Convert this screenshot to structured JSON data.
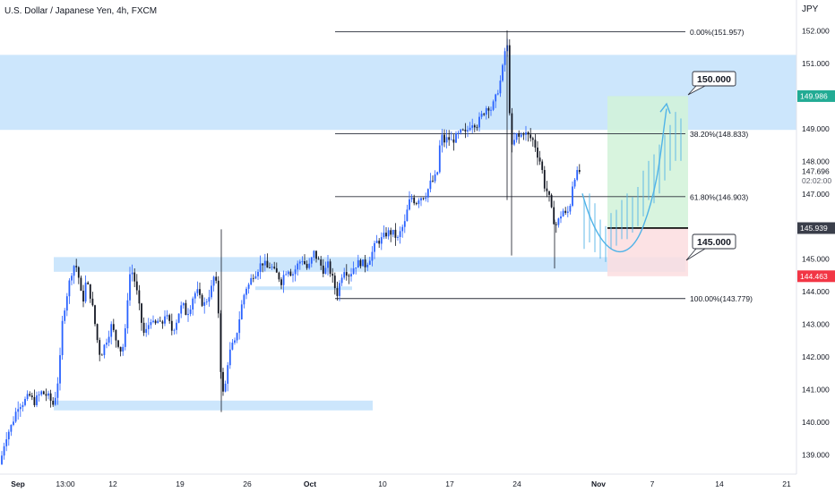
{
  "chart_data": {
    "type": "candlestick",
    "title": "U.S. Dollar / Japanese Yen, 4h, FXCM",
    "currency": "JPY",
    "ylim": [
      138.6,
      152.4
    ],
    "y_ticks": [
      "139.000",
      "140.000",
      "141.000",
      "142.000",
      "143.000",
      "144.000",
      "145.000",
      "146.000",
      "147.000",
      "148.000",
      "149.000",
      "150.000",
      "151.000",
      "152.000"
    ],
    "x_ticks": [
      "Sep",
      "13:00",
      "12",
      "19",
      "26",
      "Oct",
      "10",
      "17",
      "24",
      "Nov",
      "7",
      "14",
      "21"
    ],
    "price_path": [
      [
        0,
        138.7
      ],
      [
        6,
        139.5
      ],
      [
        13,
        139.9
      ],
      [
        20,
        140.5
      ],
      [
        26,
        140.6
      ],
      [
        33,
        140.8
      ],
      [
        38,
        140.6
      ],
      [
        46,
        140.9
      ],
      [
        53,
        140.8
      ],
      [
        60,
        140.5
      ],
      [
        66,
        141.5
      ],
      [
        70,
        143.2
      ],
      [
        76,
        144.1
      ],
      [
        80,
        144.6
      ],
      [
        84,
        144.9
      ],
      [
        88,
        144.4
      ],
      [
        92,
        143.6
      ],
      [
        96,
        144.3
      ],
      [
        100,
        144.0
      ],
      [
        104,
        143.4
      ],
      [
        108,
        142.6
      ],
      [
        112,
        142.0
      ],
      [
        116,
        142.3
      ],
      [
        120,
        142.6
      ],
      [
        125,
        143.0
      ],
      [
        128,
        142.6
      ],
      [
        132,
        142.4
      ],
      [
        136,
        142.1
      ],
      [
        140,
        142.8
      ],
      [
        144,
        144.5
      ],
      [
        148,
        144.6
      ],
      [
        152,
        144.1
      ],
      [
        156,
        143.4
      ],
      [
        160,
        142.7
      ],
      [
        164,
        142.8
      ],
      [
        168,
        143.2
      ],
      [
        172,
        142.9
      ],
      [
        176,
        143.1
      ],
      [
        180,
        142.9
      ],
      [
        184,
        143.3
      ],
      [
        188,
        143.1
      ],
      [
        192,
        142.8
      ],
      [
        196,
        143.0
      ],
      [
        200,
        143.4
      ],
      [
        204,
        143.6
      ],
      [
        208,
        143.3
      ],
      [
        212,
        143.5
      ],
      [
        216,
        143.9
      ],
      [
        220,
        144.0
      ],
      [
        224,
        143.7
      ],
      [
        228,
        143.6
      ],
      [
        232,
        143.8
      ],
      [
        236,
        144.1
      ],
      [
        240,
        144.6
      ],
      [
        244,
        143.3
      ],
      [
        247,
        141.2
      ],
      [
        250,
        140.7
      ],
      [
        254,
        141.8
      ],
      [
        258,
        142.3
      ],
      [
        262,
        142.4
      ],
      [
        266,
        143.0
      ],
      [
        270,
        143.6
      ],
      [
        274,
        144.1
      ],
      [
        278,
        144.2
      ],
      [
        282,
        144.5
      ],
      [
        286,
        144.6
      ],
      [
        290,
        144.8
      ],
      [
        294,
        144.9
      ],
      [
        298,
        144.7
      ],
      [
        302,
        144.8
      ],
      [
        306,
        144.6
      ],
      [
        310,
        144.5
      ],
      [
        314,
        144.3
      ],
      [
        318,
        144.6
      ],
      [
        322,
        144.7
      ],
      [
        326,
        144.5
      ],
      [
        330,
        144.7
      ],
      [
        334,
        144.9
      ],
      [
        338,
        145.0
      ],
      [
        342,
        144.7
      ],
      [
        346,
        144.8
      ],
      [
        350,
        145.2
      ],
      [
        354,
        145.0
      ],
      [
        358,
        144.8
      ],
      [
        362,
        144.6
      ],
      [
        366,
        144.8
      ],
      [
        370,
        144.5
      ],
      [
        374,
        144.1
      ],
      [
        377,
        143.9
      ],
      [
        380,
        144.4
      ],
      [
        384,
        144.7
      ],
      [
        390,
        144.5
      ],
      [
        396,
        144.8
      ],
      [
        402,
        144.9
      ],
      [
        408,
        144.8
      ],
      [
        414,
        145.1
      ],
      [
        420,
        145.5
      ],
      [
        426,
        145.6
      ],
      [
        432,
        145.8
      ],
      [
        438,
        145.8
      ],
      [
        444,
        145.6
      ],
      [
        448,
        145.9
      ],
      [
        452,
        146.1
      ],
      [
        456,
        146.7
      ],
      [
        460,
        146.9
      ],
      [
        464,
        146.7
      ],
      [
        468,
        146.9
      ],
      [
        472,
        146.9
      ],
      [
        476,
        147.0
      ],
      [
        480,
        147.3
      ],
      [
        484,
        147.4
      ],
      [
        488,
        147.6
      ],
      [
        492,
        148.8
      ],
      [
        496,
        148.6
      ],
      [
        500,
        148.7
      ],
      [
        504,
        148.6
      ],
      [
        508,
        148.7
      ],
      [
        512,
        148.8
      ],
      [
        516,
        148.9
      ],
      [
        520,
        148.8
      ],
      [
        524,
        149.1
      ],
      [
        528,
        149.2
      ],
      [
        532,
        149.1
      ],
      [
        536,
        149.3
      ],
      [
        540,
        149.5
      ],
      [
        544,
        149.7
      ],
      [
        548,
        149.6
      ],
      [
        552,
        149.8
      ],
      [
        556,
        150.2
      ],
      [
        560,
        150.6
      ],
      [
        563,
        151.3
      ],
      [
        566,
        151.6
      ],
      [
        568,
        150.4
      ],
      [
        570,
        148.3
      ],
      [
        573,
        148.5
      ],
      [
        576,
        148.8
      ],
      [
        580,
        148.7
      ],
      [
        584,
        148.9
      ],
      [
        588,
        148.8
      ],
      [
        592,
        148.7
      ],
      [
        596,
        148.6
      ],
      [
        600,
        148.2
      ],
      [
        604,
        147.9
      ],
      [
        608,
        147.2
      ],
      [
        612,
        147.0
      ],
      [
        616,
        146.4
      ],
      [
        620,
        146.0
      ],
      [
        624,
        146.2
      ],
      [
        628,
        146.5
      ],
      [
        632,
        146.3
      ],
      [
        636,
        146.6
      ],
      [
        640,
        147.5
      ],
      [
        644,
        147.6
      ],
      [
        648,
        147.7
      ]
    ],
    "horizontal_lines": [
      {
        "label": "0.00%(151.957)",
        "value": 151.957
      },
      {
        "label": "38.20%(148.833)",
        "value": 148.833
      },
      {
        "label": "61.80%(146.903)",
        "value": 146.903
      },
      {
        "label": "100.00%(143.779)",
        "value": 143.779
      }
    ],
    "zones": [
      {
        "name": "upper",
        "from": 148.95,
        "to": 151.25
      },
      {
        "name": "middle",
        "from": 144.6,
        "to": 145.05
      },
      {
        "name": "lower",
        "from": 140.35,
        "to": 140.65
      }
    ],
    "position_box": {
      "entry": 145.939,
      "target": 149.986,
      "stop": 144.463
    },
    "callouts": [
      {
        "text": "150.000",
        "value": 150.0
      },
      {
        "text": "145.000",
        "value": 145.0
      }
    ],
    "price_badges": [
      {
        "text": "149.986",
        "value": 149.986,
        "color": "#22ab94"
      },
      {
        "text": "145.939",
        "value": 145.939,
        "color": "#3a3e4a"
      },
      {
        "text": "144.463",
        "value": 144.463,
        "color": "#f23645"
      }
    ],
    "current_price": {
      "value": "147.696",
      "countdown": "02:02:00"
    }
  },
  "colors": {
    "bull": "#2962ff",
    "bear": "#131722",
    "zone": "#bbdefb",
    "projection": "#4fb3e8",
    "target_area": "#d1f2d8",
    "stop_area": "#fbdddf"
  }
}
